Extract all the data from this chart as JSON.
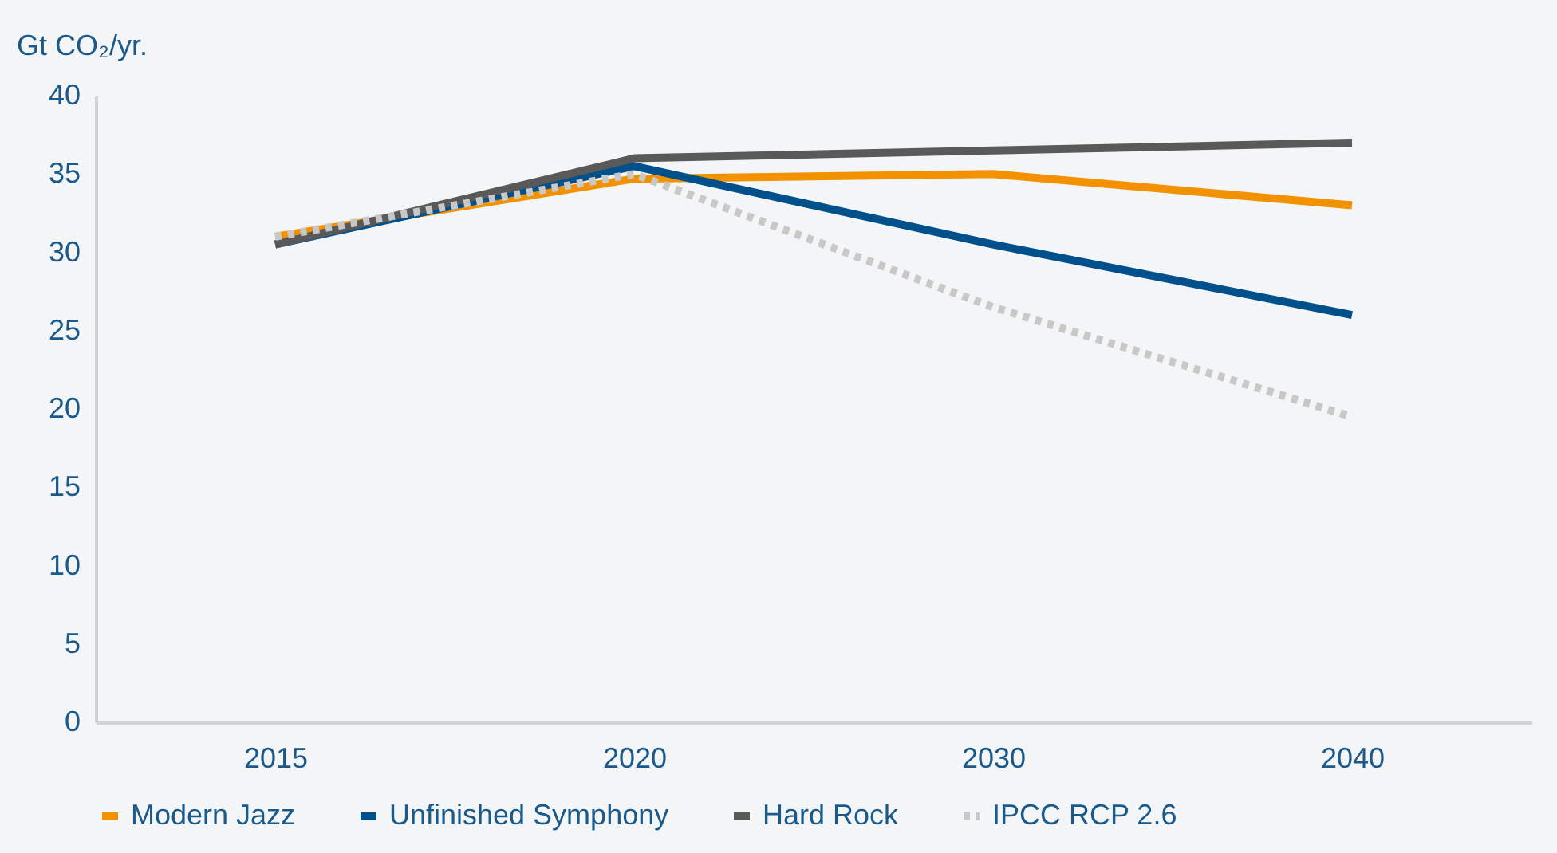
{
  "chart_data": {
    "type": "line",
    "ylabel": "Gt CO₂/yr.",
    "categories": [
      "2015",
      "2020",
      "2030",
      "2040"
    ],
    "ylim": [
      0,
      40
    ],
    "yticks": [
      0,
      5,
      10,
      15,
      20,
      25,
      30,
      35,
      40
    ],
    "grid": false,
    "legend": "bottom",
    "marker": "none",
    "series": [
      {
        "name": "Modern Jazz",
        "color": "#f39200",
        "values": [
          31,
          34.7,
          35,
          33
        ]
      },
      {
        "name": "Unfinished Symphony",
        "color": "#00508c",
        "values": [
          30.5,
          35.5,
          30.5,
          26
        ]
      },
      {
        "name": "Hard Rock",
        "color": "#595959",
        "values": [
          30.5,
          36,
          36.5,
          37
        ]
      },
      {
        "name": "IPCC RCP 2.6",
        "color": "#c8c8c8",
        "line_style": "dotted",
        "values": [
          31,
          35,
          26.5,
          19.5
        ]
      }
    ]
  }
}
